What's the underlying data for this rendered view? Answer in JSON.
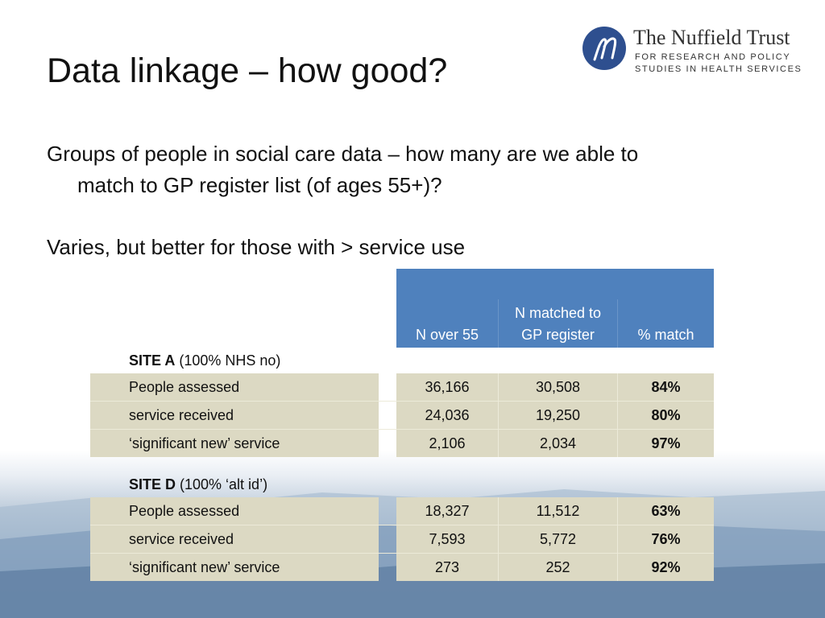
{
  "slide": {
    "title": "Data linkage – how good?",
    "para1_line1": "Groups of people in social care data – how many are we able to",
    "para1_line2": "match to GP register list (of ages 55+)?",
    "para2": "Varies, but better for those with > service use"
  },
  "logo": {
    "icon": "nuffield-n-mark",
    "name": "The Nuffield Trust",
    "sub_line1": "FOR RESEARCH AND POLICY",
    "sub_line2": "STUDIES IN HEALTH SERVICES",
    "accent": "#2e4f8f"
  },
  "table": {
    "header_color": "#4f81bd",
    "row_color": "#dcd9c3",
    "columns": [
      "N over 55",
      "N matched to GP register",
      "% match"
    ],
    "col_header_1": "N over 55",
    "col_header_2_line1": "N matched to",
    "col_header_2_line2": "GP register",
    "col_header_3": "% match",
    "sites": [
      {
        "name": "SITE A",
        "note": " (100% NHS no)",
        "rows": [
          {
            "label": "People assessed",
            "n_over_55": "36,166",
            "n_matched": "30,508",
            "pct": "84%"
          },
          {
            "label": "service received",
            "n_over_55": "24,036",
            "n_matched": "19,250",
            "pct": "80%"
          },
          {
            "label": "‘significant new’ service",
            "n_over_55": "2,106",
            "n_matched": "2,034",
            "pct": "97%"
          }
        ]
      },
      {
        "name": "SITE D",
        "note": " (100% ‘alt id’)",
        "rows": [
          {
            "label": "People assessed",
            "n_over_55": "18,327",
            "n_matched": "11,512",
            "pct": "63%"
          },
          {
            "label": "service received",
            "n_over_55": "7,593",
            "n_matched": "5,772",
            "pct": "76%"
          },
          {
            "label": "‘significant new’ service",
            "n_over_55": "273",
            "n_matched": "252",
            "pct": "92%"
          }
        ]
      }
    ]
  }
}
